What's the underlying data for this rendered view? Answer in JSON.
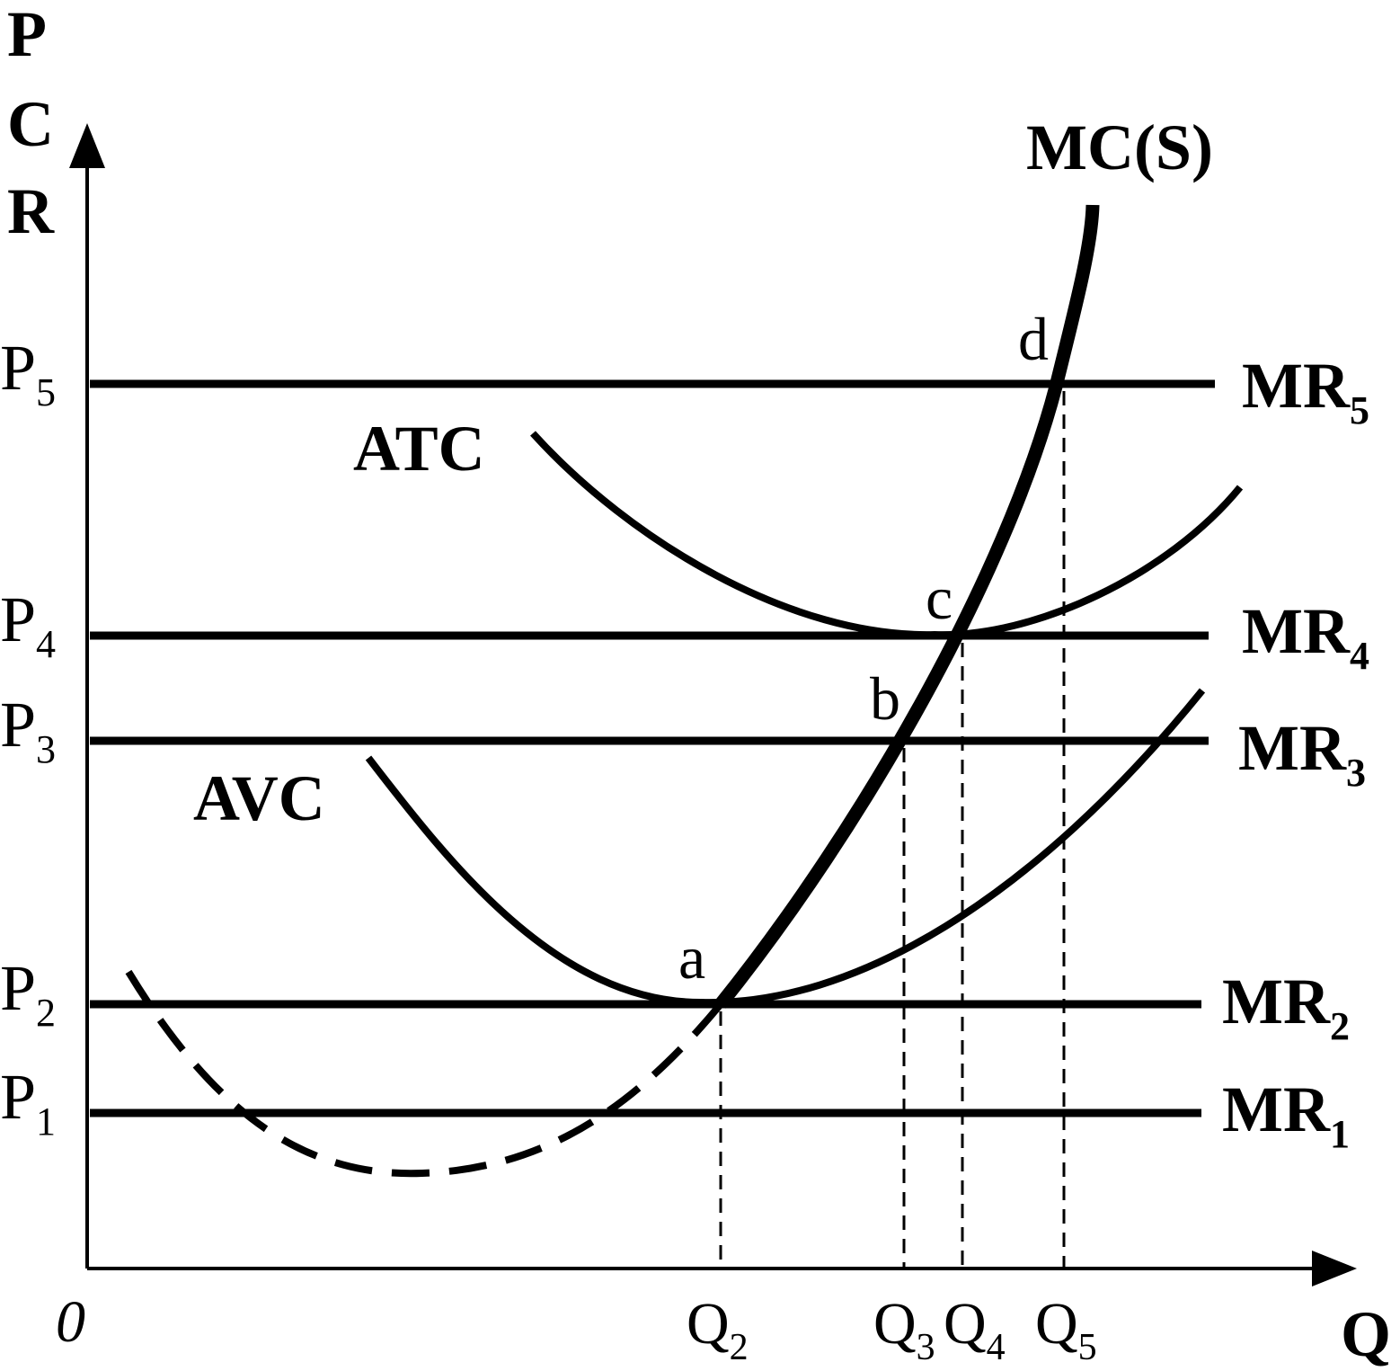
{
  "axes": {
    "y_label_lines": [
      "P",
      "C",
      "R"
    ],
    "x_label": "Q",
    "origin": "0"
  },
  "price_levels": [
    {
      "base": "P",
      "sub": "1"
    },
    {
      "base": "P",
      "sub": "2"
    },
    {
      "base": "P",
      "sub": "3"
    },
    {
      "base": "P",
      "sub": "4"
    },
    {
      "base": "P",
      "sub": "5"
    }
  ],
  "mr_lines": [
    {
      "base": "MR",
      "sub": "1"
    },
    {
      "base": "MR",
      "sub": "2"
    },
    {
      "base": "MR",
      "sub": "3"
    },
    {
      "base": "MR",
      "sub": "4"
    },
    {
      "base": "MR",
      "sub": "5"
    }
  ],
  "quantities": [
    {
      "base": "Q",
      "sub": "2"
    },
    {
      "base": "Q",
      "sub": "3"
    },
    {
      "base": "Q",
      "sub": "4"
    },
    {
      "base": "Q",
      "sub": "5"
    }
  ],
  "curves": {
    "mc": "MC(S)",
    "atc": "ATC",
    "avc": "AVC"
  },
  "points": [
    "a",
    "b",
    "c",
    "d"
  ]
}
